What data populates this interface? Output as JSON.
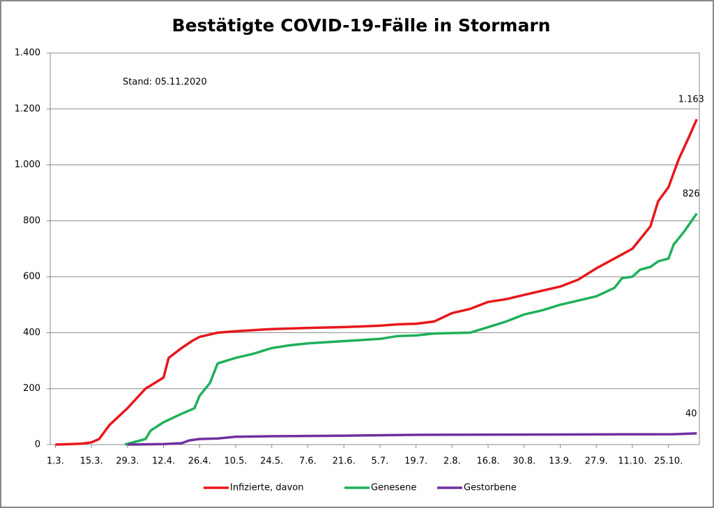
{
  "chart_data": {
    "type": "line",
    "title": "Bestätigte COVID-19-Fälle in Stormarn",
    "annotation": "Stand: 05.11.2020",
    "xlim": [
      -2,
      250
    ],
    "xticks": [
      {
        "value": 0,
        "label": "1.3."
      },
      {
        "value": 14,
        "label": "15.3."
      },
      {
        "value": 28,
        "label": "29.3."
      },
      {
        "value": 42,
        "label": "12.4."
      },
      {
        "value": 56,
        "label": "26.4."
      },
      {
        "value": 70,
        "label": "10.5."
      },
      {
        "value": 84,
        "label": "24.5."
      },
      {
        "value": 98,
        "label": "7.6."
      },
      {
        "value": 112,
        "label": "21.6."
      },
      {
        "value": 126,
        "label": "5.7."
      },
      {
        "value": 140,
        "label": "19.7."
      },
      {
        "value": 154,
        "label": "2.8."
      },
      {
        "value": 168,
        "label": "16.8."
      },
      {
        "value": 182,
        "label": "30.8."
      },
      {
        "value": 196,
        "label": "13.9."
      },
      {
        "value": 210,
        "label": "27.9."
      },
      {
        "value": 224,
        "label": "11.10."
      },
      {
        "value": 238,
        "label": "25.10."
      }
    ],
    "ylim": [
      0,
      1400
    ],
    "yticks": [
      0,
      200,
      400,
      600,
      800,
      {
        "value": 1000,
        "label": "1.000"
      },
      {
        "value": 1200,
        "label": "1.200"
      },
      {
        "value": 1400,
        "label": "1.400"
      }
    ],
    "grid": true,
    "legend": "bottom",
    "series": [
      {
        "name": "Infizierte, davon",
        "color": "#e8161c",
        "x": [
          0,
          10,
          14,
          17,
          21,
          28,
          35,
          42,
          44,
          49,
          53,
          56,
          63,
          70,
          84,
          98,
          112,
          126,
          133,
          140,
          147,
          154,
          161,
          168,
          175,
          182,
          189,
          196,
          203,
          210,
          217,
          224,
          231,
          234,
          238,
          242,
          246,
          249
        ],
        "values": [
          0,
          3,
          8,
          20,
          70,
          130,
          200,
          240,
          310,
          345,
          370,
          385,
          400,
          405,
          413,
          417,
          420,
          425,
          430,
          432,
          440,
          470,
          485,
          510,
          520,
          535,
          550,
          565,
          590,
          630,
          665,
          700,
          780,
          870,
          920,
          1020,
          1100,
          1163
        ],
        "value_labels": [
          null,
          null,
          null,
          null,
          null,
          null,
          null,
          null,
          null,
          null,
          null,
          null,
          null,
          null,
          null,
          null,
          null,
          null,
          null,
          null,
          null,
          null,
          null,
          null,
          null,
          null,
          null,
          null,
          null,
          null,
          null,
          null,
          null,
          null,
          null,
          null,
          null,
          "1.163"
        ]
      },
      {
        "name": "Genesene",
        "color": "#1fb05a",
        "x": [
          27,
          31,
          35,
          37,
          42,
          49,
          54,
          56,
          60,
          63,
          70,
          77,
          84,
          91,
          98,
          112,
          126,
          133,
          140,
          147,
          161,
          168,
          175,
          182,
          189,
          196,
          203,
          210,
          217,
          220,
          224,
          227,
          231,
          234,
          238,
          240,
          244,
          249
        ],
        "values": [
          0,
          10,
          20,
          50,
          80,
          110,
          130,
          175,
          220,
          290,
          310,
          325,
          345,
          355,
          362,
          370,
          378,
          388,
          390,
          397,
          400,
          420,
          440,
          465,
          480,
          500,
          515,
          530,
          560,
          595,
          600,
          625,
          635,
          655,
          665,
          715,
          760,
          826
        ],
        "value_labels": [
          null,
          null,
          null,
          null,
          null,
          null,
          null,
          null,
          null,
          null,
          null,
          null,
          null,
          null,
          null,
          null,
          null,
          null,
          null,
          null,
          null,
          null,
          null,
          null,
          null,
          null,
          null,
          null,
          null,
          null,
          null,
          null,
          null,
          null,
          null,
          null,
          null,
          "826"
        ]
      },
      {
        "name": "Gestorbene",
        "color": "#7030a0",
        "x": [
          28,
          42,
          49,
          52,
          56,
          63,
          70,
          84,
          112,
          140,
          200,
          240,
          249
        ],
        "values": [
          0,
          2,
          5,
          15,
          20,
          22,
          28,
          30,
          32,
          35,
          36,
          37,
          40
        ],
        "value_labels": [
          null,
          null,
          null,
          null,
          null,
          null,
          null,
          null,
          null,
          null,
          null,
          null,
          "40"
        ]
      }
    ]
  }
}
